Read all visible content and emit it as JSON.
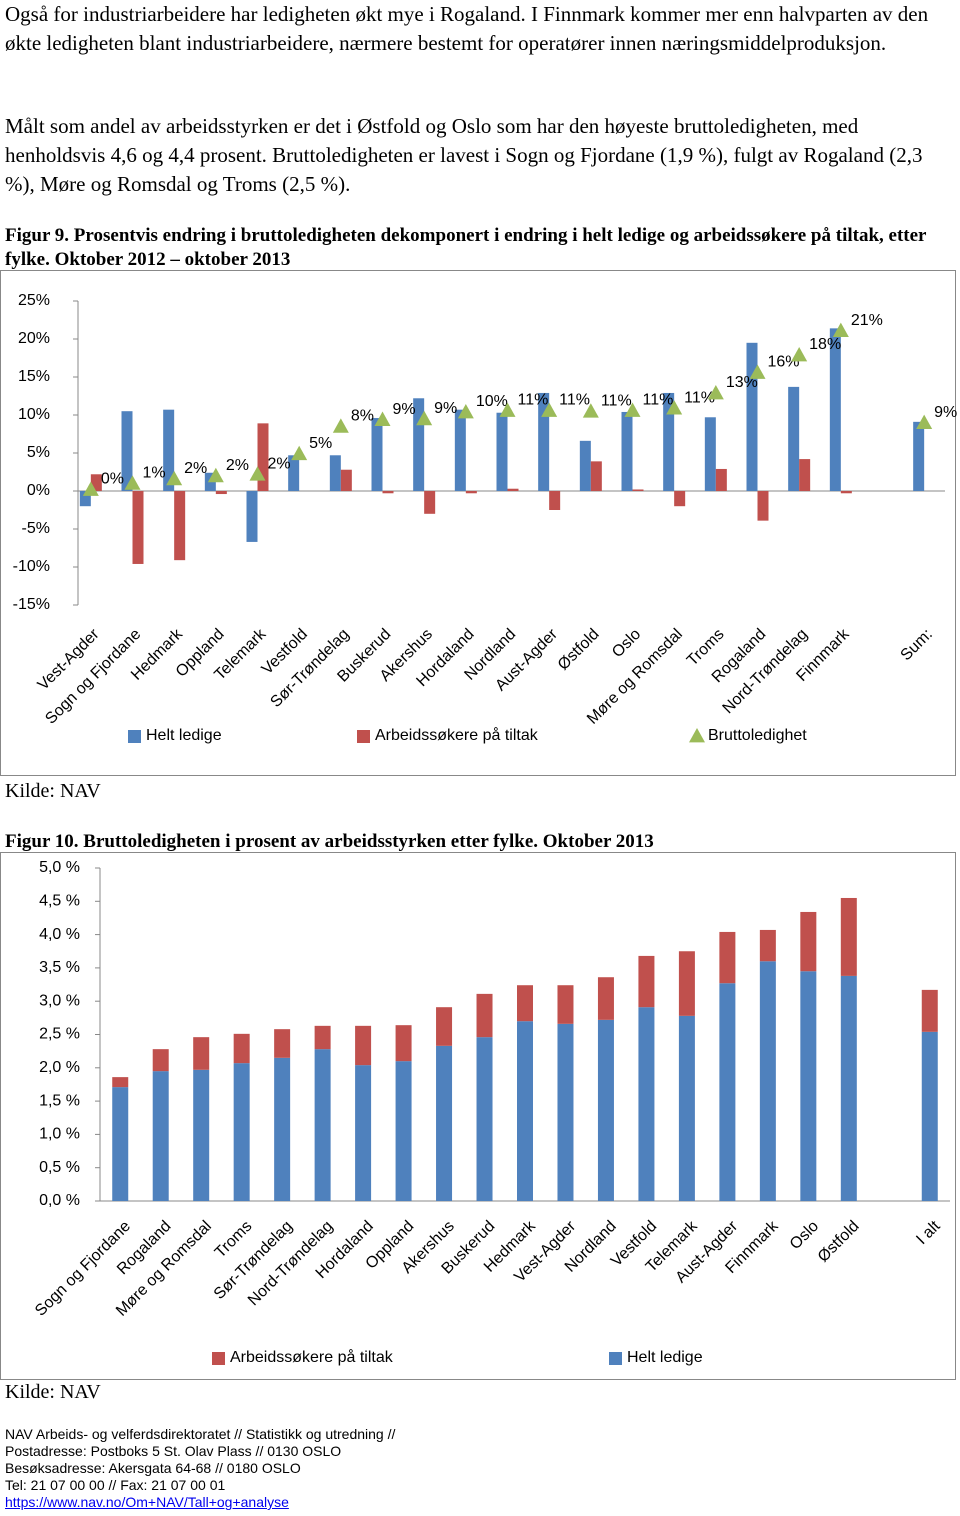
{
  "paragraphs": [
    "Også for industriarbeidere har ledigheten økt mye i Rogaland. I Finnmark kommer mer enn halvparten av den økte ledigheten blant industriarbeidere, nærmere bestemt for operatører innen næringsmiddelproduksjon.",
    "Målt som andel av arbeidsstyrken er det i Østfold og Oslo som har den høyeste bruttoledigheten, med henholdsvis 4,6 og 4,4 prosent. Bruttoledigheten er lavest i Sogn og Fjordane (1,9 %), fulgt av Rogaland (2,3 %), Møre og Romsdal og Troms (2,5 %)."
  ],
  "figures": [
    {
      "caption": "Figur 9. Prosentvis endring i bruttoledigheten dekomponert i endring i helt ledige og arbeidssøkere på tiltak, etter fylke. Oktober 2012 – oktober 2013",
      "source": "Kilde: NAV"
    },
    {
      "caption": "Figur 10. Bruttoledigheten i prosent av arbeidsstyrken etter fylke.  Oktober 2013",
      "source": "Kilde: NAV"
    }
  ],
  "footer": {
    "lines": [
      "NAV Arbeids- og velferdsdirektoratet // Statistikk og utredning //",
      "Postadresse: Postboks 5 St. Olav Plass // 0130 OSLO",
      "Besøksadresse: Akersgata 64-68 // 0180 OSLO",
      "Tel: 21 07 00 00 // Fax: 21 07 00 01"
    ],
    "link": "https://www.nav.no/Om+NAV/Tall+og+analyse"
  },
  "chart_data": [
    {
      "type": "bar",
      "categories": [
        "Vest-Agder",
        "Sogn og Fjordane",
        "Hedmark",
        "Oppland",
        "Telemark",
        "Vestfold",
        "Sør-Trøndelag",
        "Buskerud",
        "Akershus",
        "Hordaland",
        "Nordland",
        "Aust-Agder",
        "Østfold",
        "Oslo",
        "Møre og Romsdal",
        "Troms",
        "Rogaland",
        "Nord-Trøndelag",
        "Finnmark",
        null,
        "Sum:"
      ],
      "ylim": [
        -15,
        25
      ],
      "yticks": [
        {
          "value": 25,
          "label": "25%"
        },
        {
          "value": 20,
          "label": "20%"
        },
        {
          "value": 15,
          "label": "15%"
        },
        {
          "value": 10,
          "label": "10%"
        },
        {
          "value": 5,
          "label": "5%"
        },
        {
          "value": 0,
          "label": "0%"
        },
        {
          "value": -5,
          "label": "-5%"
        },
        {
          "value": -10,
          "label": "-10%"
        },
        {
          "value": -15,
          "label": "-15%"
        }
      ],
      "series": [
        {
          "name": "Helt ledige",
          "color": "#4f81bd",
          "values": [
            -2.0,
            10.5,
            10.7,
            2.4,
            -6.7,
            4.7,
            4.7,
            9.6,
            12.2,
            10.7,
            10.3,
            12.9,
            6.6,
            10.4,
            12.9,
            9.7,
            19.5,
            13.7,
            21.4,
            null,
            9.1
          ]
        },
        {
          "name": "Arbeidssøkere på tiltak",
          "color": "#c0504d",
          "values": [
            2.2,
            -9.6,
            -9.1,
            -0.4,
            8.9,
            0,
            2.8,
            -0.3,
            -3.0,
            -0.3,
            0.3,
            -2.5,
            3.9,
            0.2,
            -2.0,
            2.9,
            -3.9,
            4.2,
            -0.3,
            null,
            0
          ]
        },
        {
          "name": "Bruttoledighet",
          "color": "#9bbb59",
          "marker": "triangle",
          "values": [
            0.2,
            1.0,
            1.6,
            2.0,
            2.2,
            4.9,
            8.5,
            9.4,
            9.5,
            10.4,
            10.6,
            10.6,
            10.5,
            10.6,
            10.9,
            12.9,
            15.6,
            17.9,
            21.1,
            null,
            9.0
          ],
          "value_labels": [
            "0%",
            "1%",
            "2%",
            "2%",
            "2%",
            "5%",
            "8%",
            "9%",
            "9%",
            "10%",
            "11%",
            "11%",
            "11%",
            "11%",
            "11%",
            "13%",
            "16%",
            "18%",
            "21%",
            null,
            "9%"
          ]
        }
      ]
    },
    {
      "type": "stacked_bar",
      "categories": [
        "Sogn og Fjordane",
        "Rogaland",
        "Møre og Romsdal",
        "Troms",
        "Sør-Trøndelag",
        "Nord-Trøndelag",
        "Hordaland",
        "Oppland",
        "Akershus",
        "Buskerud",
        "Hedmark",
        "Vest-Agder",
        "Nordland",
        "Vestfold",
        "Telemark",
        "Aust-Agder",
        "Finnmark",
        "Oslo",
        "Østfold",
        null,
        "I alt"
      ],
      "ylim": [
        0,
        5
      ],
      "yticks": [
        {
          "value": 0,
          "label": "0,0 %"
        },
        {
          "value": 0.5,
          "label": "0,5 %"
        },
        {
          "value": 1,
          "label": "1,0 %"
        },
        {
          "value": 1.5,
          "label": "1,5 %"
        },
        {
          "value": 2,
          "label": "2,0 %"
        },
        {
          "value": 2.5,
          "label": "2,5 %"
        },
        {
          "value": 3,
          "label": "3,0 %"
        },
        {
          "value": 3.5,
          "label": "3,5 %"
        },
        {
          "value": 4,
          "label": "4,0 %"
        },
        {
          "value": 4.5,
          "label": "4,5 %"
        },
        {
          "value": 5,
          "label": "5,0 %"
        }
      ],
      "series": [
        {
          "name": "Helt ledige",
          "color": "#4f81bd",
          "values": [
            1.71,
            1.95,
            1.97,
            2.07,
            2.15,
            2.28,
            2.04,
            2.1,
            2.33,
            2.46,
            2.7,
            2.66,
            2.72,
            2.91,
            2.78,
            3.27,
            3.6,
            3.45,
            3.38,
            null,
            2.54
          ]
        },
        {
          "name": "Arbeidssøkere på tiltak",
          "color": "#c0504d",
          "values": [
            0.15,
            0.33,
            0.49,
            0.44,
            0.43,
            0.35,
            0.59,
            0.54,
            0.58,
            0.65,
            0.54,
            0.58,
            0.64,
            0.77,
            0.97,
            0.77,
            0.47,
            0.89,
            1.17,
            null,
            0.63
          ]
        }
      ]
    }
  ]
}
